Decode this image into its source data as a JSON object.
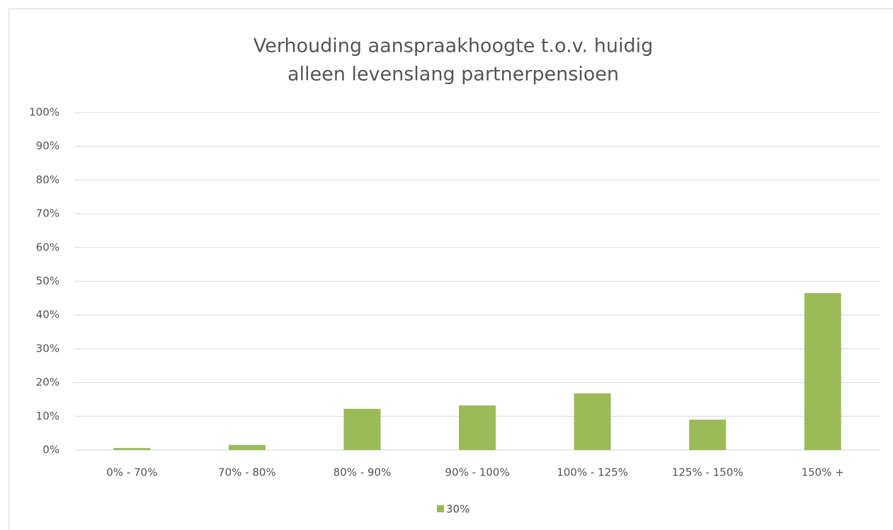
{
  "chart_data": {
    "type": "bar",
    "title": [
      "Verhouding aanspraakhoogte t.o.v. huidig",
      "alleen levenslang partnerpensioen"
    ],
    "categories": [
      "0% - 70%",
      "70% - 80%",
      "80% - 90%",
      "90% - 100%",
      "100% - 125%",
      "125% - 150%",
      "150% +"
    ],
    "series": [
      {
        "name": "30%",
        "color": "#9bbb59",
        "values": [
          0.6,
          1.5,
          12.2,
          13.2,
          16.8,
          9.0,
          46.5
        ]
      }
    ],
    "ylim": [
      0,
      100
    ],
    "yticks": [
      {
        "value": 0,
        "label": "0%"
      },
      {
        "value": 10,
        "label": "10%"
      },
      {
        "value": 20,
        "label": "20%"
      },
      {
        "value": 30,
        "label": "30%"
      },
      {
        "value": 40,
        "label": "40%"
      },
      {
        "value": 50,
        "label": "50%"
      },
      {
        "value": 60,
        "label": "60%"
      },
      {
        "value": 70,
        "label": "70%"
      },
      {
        "value": 80,
        "label": "80%"
      },
      {
        "value": 90,
        "label": "90%"
      },
      {
        "value": 100,
        "label": "100%"
      }
    ],
    "grid": true,
    "legend": "bottom"
  }
}
